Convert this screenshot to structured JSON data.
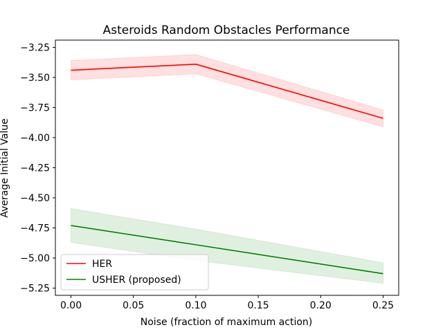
{
  "chart_data": {
    "type": "line",
    "title": "Asteroids Random Obstacles Performance",
    "xlabel": "Noise (fraction of maximum action)",
    "ylabel": "Average Initial Value",
    "x": [
      0.0,
      0.1,
      0.25
    ],
    "xlim": [
      -0.0125,
      0.2625
    ],
    "ylim": [
      -5.31,
      -3.19
    ],
    "xticks": [
      0.0,
      0.05,
      0.1,
      0.15,
      0.2,
      0.25
    ],
    "xtick_labels": [
      "0.00",
      "0.05",
      "0.10",
      "0.15",
      "0.20",
      "0.25"
    ],
    "yticks": [
      -3.25,
      -3.5,
      -3.75,
      -4.0,
      -4.25,
      -4.5,
      -4.75,
      -5.0,
      -5.25
    ],
    "ytick_labels": [
      "−3.25",
      "−3.50",
      "−3.75",
      "−4.00",
      "−4.25",
      "−4.50",
      "−4.75",
      "−5.00",
      "−5.25"
    ],
    "grid": false,
    "legend_position": "lower-left",
    "series": [
      {
        "name": "HER",
        "color": "#ff0000",
        "band_color": "#ff0000",
        "values": [
          -3.44,
          -3.39,
          -3.84
        ],
        "lower": [
          -3.52,
          -3.47,
          -3.91
        ],
        "upper": [
          -3.36,
          -3.31,
          -3.77
        ]
      },
      {
        "name": "USHER (proposed)",
        "color": "#008000",
        "band_color": "#008000",
        "values": [
          -4.73,
          -4.89,
          -5.13
        ],
        "lower": [
          -4.87,
          -5.02,
          -5.21
        ],
        "upper": [
          -4.59,
          -4.76,
          -5.04
        ]
      }
    ]
  }
}
